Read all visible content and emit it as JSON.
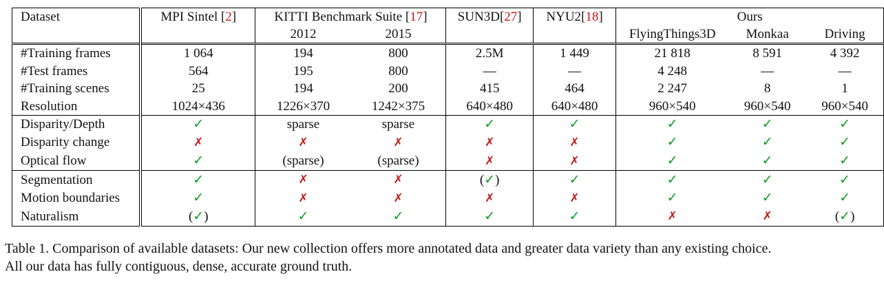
{
  "table": {
    "corner_label": "Dataset",
    "header": {
      "mpi": {
        "name": "MPI Sintel ",
        "bracket_open": "[",
        "ref": "2",
        "bracket_close": "]"
      },
      "kitti": {
        "name": "KITTI Benchmark Suite ",
        "bracket_open": "[",
        "ref": "17",
        "bracket_close": "]",
        "years": [
          "2012",
          "2015"
        ]
      },
      "sun3d": {
        "name": "SUN3D",
        "bracket_open": "[",
        "ref": "27",
        "bracket_close": "]"
      },
      "nyu2": {
        "name": "NYU2",
        "bracket_open": "[",
        "ref": "18",
        "bracket_close": "]"
      },
      "ours": {
        "name": "Ours",
        "subsets": [
          "FlyingThings3D",
          "Monkaa",
          "Driving"
        ]
      }
    },
    "rows": [
      {
        "label": "#Training frames",
        "cells": [
          "1 064",
          "194",
          "800",
          "2.5M",
          "1 449",
          "21 818",
          "8 591",
          "4 392"
        ]
      },
      {
        "label": "#Test frames",
        "cells": [
          "564",
          "195",
          "800",
          "—",
          "—",
          "4 248",
          "—",
          "—"
        ],
        "ft_span": true
      },
      {
        "label": "#Training scenes",
        "cells": [
          "25",
          "194",
          "200",
          "415",
          "464",
          "2 247",
          "8",
          "1"
        ]
      },
      {
        "label": "Resolution",
        "cells": [
          "1024×436",
          "1226×370",
          "1242×375",
          "640×480",
          "640×480",
          "960×540",
          "960×540",
          "960×540"
        ]
      },
      {
        "label": "Disparity/Depth",
        "cells": [
          "✓",
          "sparse",
          "sparse",
          "✓",
          "✓",
          "✓",
          "✓",
          "✓"
        ]
      },
      {
        "label": "Disparity change",
        "cells": [
          "✗",
          "✗",
          "✗",
          "✗",
          "✗",
          "✓",
          "✓",
          "✓"
        ]
      },
      {
        "label": "Optical flow",
        "cells": [
          "✓",
          "(sparse)",
          "(sparse)",
          "✗",
          "✗",
          "✓",
          "✓",
          "✓"
        ]
      },
      {
        "label": "Segmentation",
        "cells": [
          "✓",
          "✗",
          "✗",
          "(✓)",
          "✓",
          "✓",
          "✓",
          "✓"
        ]
      },
      {
        "label": "Motion boundaries",
        "cells": [
          "✓",
          "✗",
          "✗",
          "✗",
          "✗",
          "✓",
          "✓",
          "✓"
        ]
      },
      {
        "label": "Naturalism",
        "cells": [
          "(✓)",
          "✓",
          "✓",
          "✓",
          "✓",
          "✗",
          "✗",
          "(✓)"
        ]
      }
    ]
  },
  "caption": {
    "line1": "Table 1. Comparison of available datasets: Our new collection offers more annotated data and greater data variety than any existing choice.",
    "line2": "All our data has fully contiguous, dense, accurate ground truth."
  },
  "colors": {
    "check": "#0a9a22",
    "cross": "#c41a1a",
    "reference": "#cc1111"
  }
}
